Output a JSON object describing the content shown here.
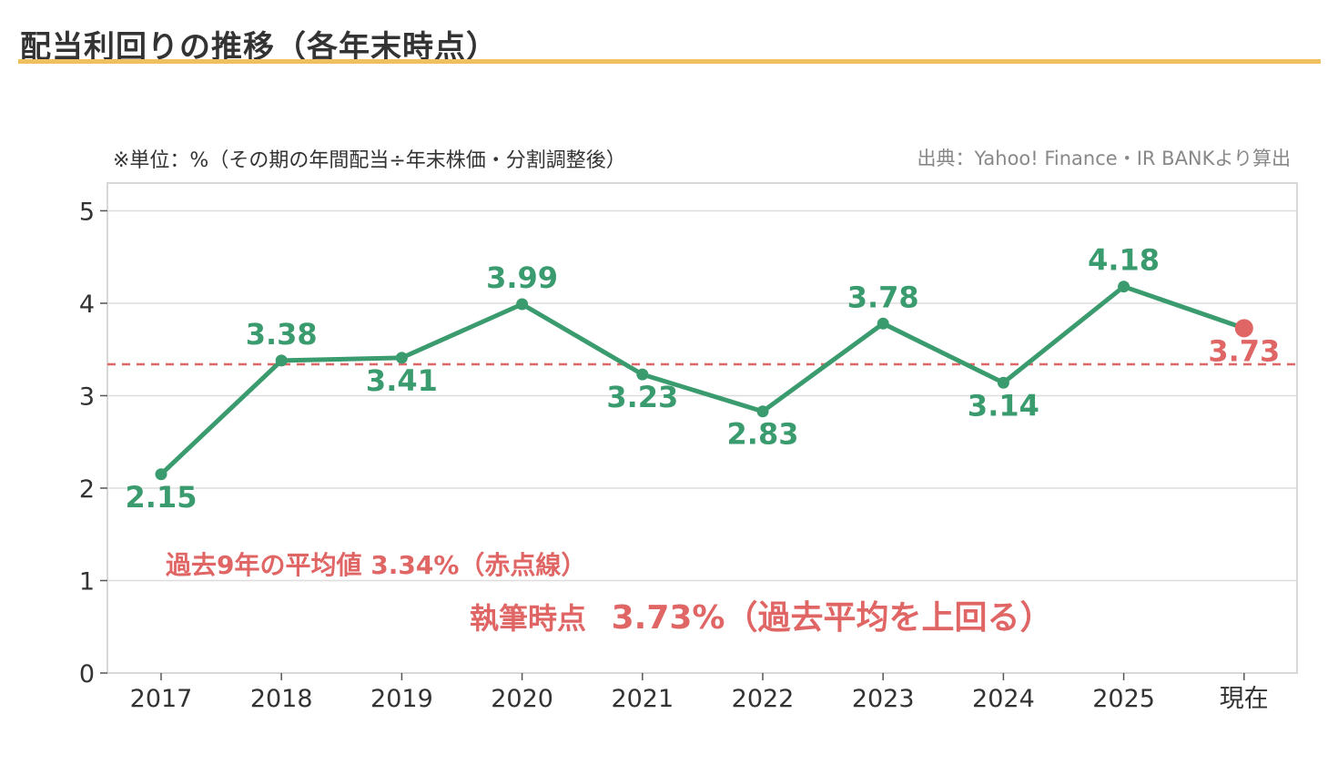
{
  "title": "配当利回りの推移（各年末時点）",
  "unit_note": "※単位：%（その期の年間配当÷年末株価・分割調整後）",
  "source_note": "出典：Yahoo! Finance・IR BANKより算出",
  "colors": {
    "line": "#3a9b6e",
    "current": "#e06666",
    "average_line": "#e06666",
    "title_rule": "#f0c060",
    "grid": "#dddddd"
  },
  "chart_data": {
    "type": "line",
    "categories": [
      "2017",
      "2018",
      "2019",
      "2020",
      "2021",
      "2022",
      "2023",
      "2024",
      "2025",
      "現在"
    ],
    "values": [
      2.15,
      3.38,
      3.41,
      3.99,
      3.23,
      2.83,
      3.78,
      3.14,
      4.18,
      3.73
    ],
    "data_labels": [
      "2.15",
      "3.38",
      "3.41",
      "3.99",
      "3.23",
      "2.83",
      "3.78",
      "3.14",
      "4.18",
      "3.73"
    ],
    "label_positions": [
      "below",
      "above",
      "below",
      "above",
      "below",
      "below",
      "above",
      "below",
      "above",
      "below"
    ],
    "highlight_last_point": true,
    "average": 3.34,
    "ylim": [
      0,
      5.3
    ],
    "yticks": [
      "0",
      "1",
      "2",
      "3",
      "4",
      "5"
    ],
    "grid": true,
    "annotations": {
      "average_note": "過去9年の平均値 3.34%（赤点線）",
      "current_note_prefix": "執筆時点",
      "current_note_value": "3.73%（過去平均を上回る）"
    }
  }
}
